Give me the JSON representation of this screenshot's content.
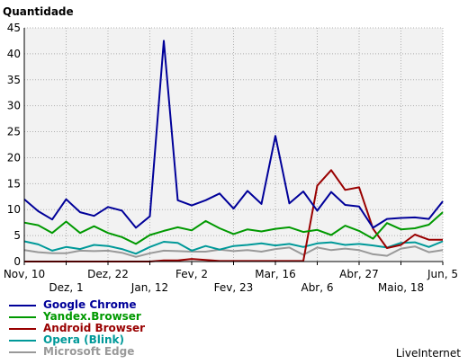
{
  "chart_data": {
    "type": "line",
    "ylabel": "Quantidade",
    "ylim": [
      0,
      45
    ],
    "yticks": [
      0,
      5,
      10,
      15,
      20,
      25,
      30,
      35,
      40,
      45
    ],
    "grid": true,
    "legend_position": "bottom-left",
    "x": [
      "Nov, 10",
      "Nov, 17",
      "Nov, 24",
      "Dez, 1",
      "Dez, 8",
      "Dez, 15",
      "Dez, 22",
      "Dez, 29",
      "Jan, 5",
      "Jan, 12",
      "Jan, 19",
      "Jan, 26",
      "Fev, 2",
      "Fev, 9",
      "Fev, 16",
      "Fev, 23",
      "Mar, 2",
      "Mar, 9",
      "Mar, 16",
      "Mar, 23",
      "Mar, 30",
      "Abr, 6",
      "Abr, 13",
      "Abr, 20",
      "Abr, 27",
      "Mai, 4",
      "Mai, 11",
      "Maio, 18",
      "Mai, 25",
      "Jun, 1",
      "Jun, 5"
    ],
    "xtick_labels_row1": [
      {
        "index": 0,
        "label": "Nov, 10"
      },
      {
        "index": 6,
        "label": "Dez, 22"
      },
      {
        "index": 12,
        "label": "Fev, 2"
      },
      {
        "index": 18,
        "label": "Mar, 16"
      },
      {
        "index": 24,
        "label": "Abr, 27"
      },
      {
        "index": 30,
        "label": "Jun, 5"
      }
    ],
    "xtick_labels_row2": [
      {
        "index": 3,
        "label": "Dez, 1"
      },
      {
        "index": 9,
        "label": "Jan, 12"
      },
      {
        "index": 15,
        "label": "Fev, 23"
      },
      {
        "index": 21,
        "label": "Abr, 6"
      },
      {
        "index": 27,
        "label": "Maio, 18"
      }
    ],
    "series": [
      {
        "name": "Google Chrome",
        "color": "#000099",
        "values": [
          12,
          9.7,
          8.1,
          12,
          9.5,
          8.8,
          10.5,
          9.8,
          6.5,
          8.7,
          42.5,
          11.8,
          10.8,
          11.8,
          13.1,
          10.2,
          13.6,
          11.1,
          24.2,
          11.2,
          13.5,
          9.8,
          13.4,
          10.9,
          10.6,
          6.5,
          8.2,
          8.4,
          8.5,
          8.2,
          11.6
        ]
      },
      {
        "name": "Yandex.Browser",
        "color": "#009900",
        "values": [
          7.5,
          7,
          5.5,
          7.7,
          5.5,
          6.8,
          5.5,
          4.7,
          3.4,
          5.1,
          5.9,
          6.6,
          6,
          7.8,
          6.4,
          5.3,
          6.2,
          5.8,
          6.3,
          6.6,
          5.7,
          6.1,
          5.1,
          6.9,
          5.9,
          4.4,
          7.4,
          6.2,
          6.4,
          7.1,
          9.5
        ]
      },
      {
        "name": "Android Browser",
        "color": "#990000",
        "values": [
          0,
          0,
          0,
          0,
          0,
          0,
          0,
          0,
          0,
          0,
          0.2,
          0.2,
          0.5,
          0.3,
          0.1,
          0.1,
          0.1,
          0.1,
          0.1,
          0.1,
          0.1,
          14.6,
          17.6,
          13.8,
          14.3,
          6.3,
          2.6,
          3.2,
          5.2,
          4.2,
          4.2
        ]
      },
      {
        "name": "Opera (Blink)",
        "color": "#009999",
        "values": [
          3.9,
          3.3,
          2.1,
          2.8,
          2.4,
          3.2,
          3,
          2.4,
          1.5,
          2.8,
          3.8,
          3.6,
          2.1,
          3,
          2.3,
          3,
          3.2,
          3.5,
          3.1,
          3.4,
          2.8,
          3.5,
          3.7,
          3.2,
          3.4,
          3.1,
          2.7,
          3.6,
          3.7,
          2.8,
          3.9
        ]
      },
      {
        "name": "Microsoft Edge",
        "color": "#999999",
        "values": [
          2.2,
          1.8,
          1.6,
          1.6,
          2.1,
          2,
          2.1,
          1.7,
          0.9,
          1.6,
          2.1,
          2,
          1.9,
          1.9,
          2.3,
          2,
          2.2,
          1.9,
          2.4,
          2.7,
          1.3,
          2.7,
          2.2,
          2.5,
          2.2,
          1.4,
          1.1,
          2.5,
          2.9,
          1.8,
          2.2
        ]
      }
    ]
  },
  "brand": "LiveInternet"
}
